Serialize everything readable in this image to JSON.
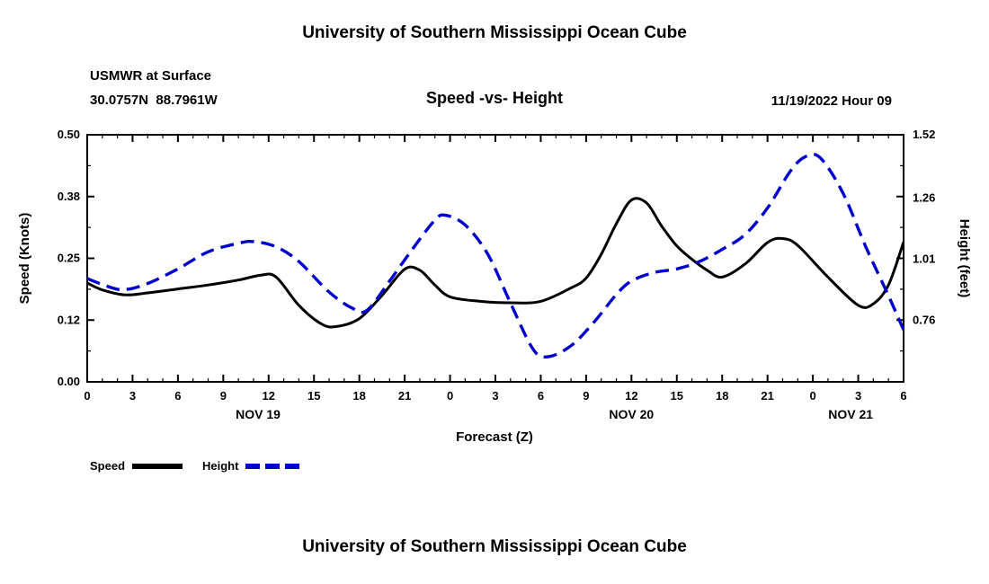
{
  "page": {
    "top_title": "University of Southern Mississippi Ocean Cube",
    "bottom_title": "University of Southern Mississippi Ocean Cube"
  },
  "header": {
    "station": "USMWR at Surface",
    "location": "30.0757N  88.7961W",
    "plot_title": "Speed -vs- Height",
    "datetime_label": "11/19/2022 Hour 09"
  },
  "chart_data": {
    "type": "line",
    "title": "Speed -vs- Height",
    "xlabel": "Forecast (Z)",
    "ylabel_left": "Speed (Knots)",
    "ylabel_right": "Height (feet)",
    "grid": false,
    "legend_position": "bottom-left",
    "x_range": [
      0,
      54
    ],
    "x_tick_hours": [
      0,
      3,
      6,
      9,
      12,
      15,
      18,
      21,
      24,
      27,
      30,
      33,
      36,
      39,
      42,
      45,
      48,
      51,
      54
    ],
    "x_tick_labels": [
      "0",
      "3",
      "6",
      "9",
      "12",
      "15",
      "18",
      "21",
      "0",
      "3",
      "6",
      "9",
      "12",
      "15",
      "18",
      "21",
      "0",
      "3",
      "6"
    ],
    "date_labels": [
      {
        "label": "NOV 19",
        "hour": 11.3
      },
      {
        "label": "NOV 20",
        "hour": 36
      },
      {
        "label": "NOV 21",
        "hour": 50.5
      }
    ],
    "y_left_range": [
      0,
      0.5
    ],
    "y_left_tick_values": [
      0,
      0.125,
      0.25,
      0.375,
      0.5
    ],
    "y_left_tick_labels": [
      "0.00",
      "0.12",
      "0.25",
      "0.38",
      "0.50"
    ],
    "y_right_range": [
      0.5067,
      1.52
    ],
    "y_right_tick_values": [
      0.76,
      1.01,
      1.26,
      1.52
    ],
    "y_right_tick_labels": [
      "0.76",
      "1.01",
      "1.26",
      "1.52"
    ],
    "series": [
      {
        "name": "Speed",
        "axis": "left",
        "units": "knots",
        "color": "#000000",
        "style": "solid",
        "x": [
          0,
          1,
          2.5,
          4,
          6,
          8,
          10,
          11.5,
          12.5,
          14,
          15.5,
          16.5,
          18,
          19.5,
          21,
          22,
          23,
          24,
          26,
          28,
          30,
          32,
          33,
          34,
          35,
          36,
          37,
          38,
          39,
          40,
          41,
          42,
          43.5,
          45,
          46,
          47,
          49,
          51,
          52,
          53,
          54
        ],
        "y": [
          0.2,
          0.186,
          0.176,
          0.18,
          0.188,
          0.196,
          0.206,
          0.216,
          0.212,
          0.155,
          0.117,
          0.112,
          0.128,
          0.175,
          0.228,
          0.226,
          0.196,
          0.172,
          0.163,
          0.16,
          0.163,
          0.19,
          0.21,
          0.258,
          0.32,
          0.368,
          0.362,
          0.315,
          0.275,
          0.248,
          0.226,
          0.212,
          0.238,
          0.282,
          0.29,
          0.276,
          0.212,
          0.155,
          0.158,
          0.196,
          0.283
        ]
      },
      {
        "name": "Height",
        "axis": "right",
        "units": "feet",
        "color": "#0000cd",
        "style": "dashed",
        "x": [
          0,
          1.5,
          2.5,
          4,
          6,
          8,
          10,
          11,
          12.5,
          14,
          16,
          17.5,
          18.5,
          20,
          21.5,
          23,
          23.7,
          25,
          26.5,
          28,
          29.5,
          30.5,
          32,
          33.5,
          35,
          36,
          37.5,
          39,
          40.5,
          42,
          43.5,
          45,
          46.5,
          47.5,
          48.5,
          50,
          51.5,
          53,
          54
        ],
        "y": [
          0.93,
          0.895,
          0.885,
          0.91,
          0.97,
          1.04,
          1.075,
          1.082,
          1.06,
          1.0,
          0.875,
          0.81,
          0.8,
          0.92,
          1.05,
          1.17,
          1.19,
          1.15,
          1.03,
          0.83,
          0.64,
          0.61,
          0.655,
          0.75,
          0.865,
          0.92,
          0.955,
          0.97,
          1.0,
          1.05,
          1.11,
          1.22,
          1.37,
          1.43,
          1.425,
          1.28,
          1.06,
          0.86,
          0.72
        ]
      }
    ]
  }
}
